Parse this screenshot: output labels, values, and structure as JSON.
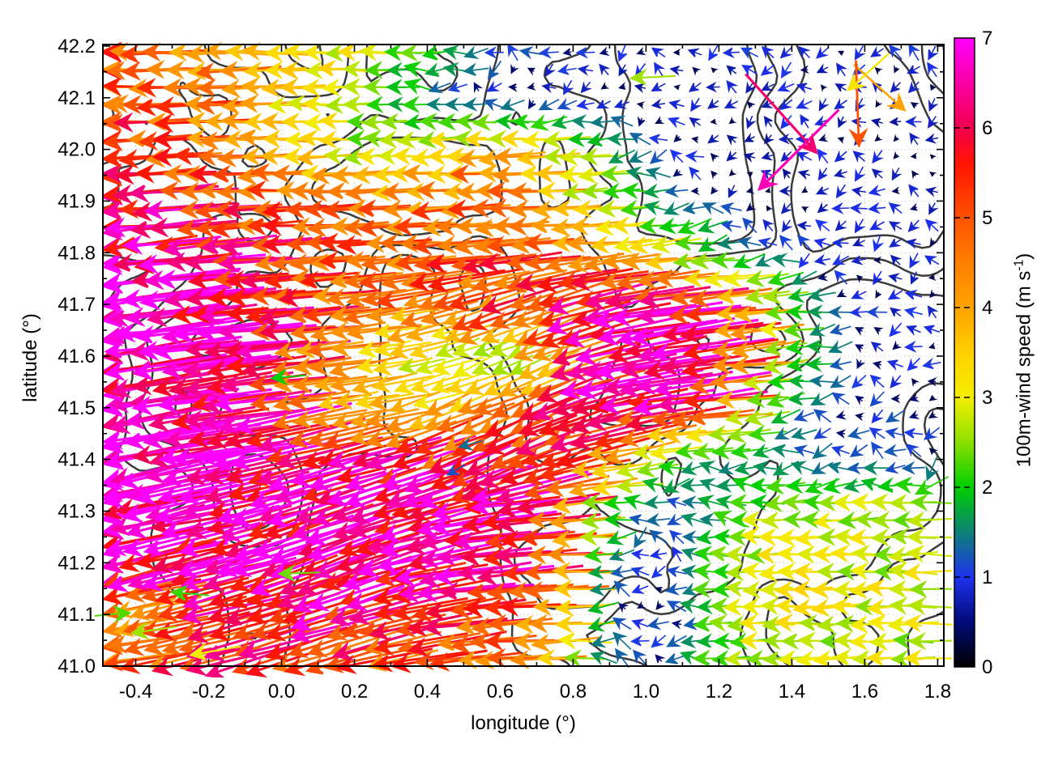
{
  "chart_data": {
    "type": "quiver",
    "title": "",
    "xlabel": "longitude (°)",
    "ylabel": "latitude (°)",
    "xlim": [
      -0.49,
      1.817
    ],
    "ylim": [
      41.0,
      42.203
    ],
    "xticks": {
      "values": [
        -0.4,
        -0.2,
        0.0,
        0.2,
        0.4,
        0.6,
        0.8,
        1.0,
        1.2,
        1.4,
        1.6,
        1.8
      ],
      "labels": [
        "-0.4",
        "-0.2",
        "0.0",
        "0.2",
        "0.4",
        "0.6",
        "0.8",
        "1.0",
        "1.2",
        "1.4",
        "1.6",
        "1.8"
      ],
      "minor_step": 0.1
    },
    "yticks": {
      "values": [
        41.0,
        41.1,
        41.2,
        41.3,
        41.4,
        41.5,
        41.6,
        41.7,
        41.8,
        41.9,
        42.0,
        42.1,
        42.2
      ],
      "labels": [
        "41.0",
        "41.1",
        "41.2",
        "41.3",
        "41.4",
        "41.5",
        "41.6",
        "41.7",
        "41.8",
        "41.9",
        "42.0",
        "42.1",
        "42.2"
      ],
      "minor_step": 0.05
    },
    "grid": {
      "show": true,
      "style": "dotted",
      "color": "#bdbdbd"
    },
    "background": "#ffffff",
    "border_color": "#000000",
    "colorbar": {
      "label_main": "100m-wind speed (m s",
      "label_sup": "-1",
      "label_close": ")",
      "range": [
        0,
        7
      ],
      "ticks": [
        0,
        1,
        2,
        3,
        4,
        5,
        6,
        7
      ],
      "tick_labels": [
        "0",
        "1",
        "2",
        "3",
        "4",
        "5",
        "6",
        "7"
      ],
      "palette": [
        [
          0,
          "#000000"
        ],
        [
          0.5,
          "#000a78"
        ],
        [
          1,
          "#1f32f0"
        ],
        [
          1.5,
          "#0c8177"
        ],
        [
          2,
          "#00cf00"
        ],
        [
          2.5,
          "#8ce000"
        ],
        [
          3,
          "#f4ee00"
        ],
        [
          3.5,
          "#ffd000"
        ],
        [
          4,
          "#ffa200"
        ],
        [
          4.5,
          "#ff8000"
        ],
        [
          5,
          "#ff5200"
        ],
        [
          5.6,
          "#ff1400"
        ],
        [
          6,
          "#f2004e"
        ],
        [
          6.5,
          "#fa00a4"
        ],
        [
          7,
          "#ff00ff"
        ]
      ]
    },
    "wind_field": {
      "lon0": -0.5,
      "dlon": 0.1,
      "lat0": 42.2,
      "dlat": -0.1,
      "fine_lon0": -0.465,
      "fine_dlon": 0.05,
      "fine_cols": 46,
      "fine_lat0": 41.015,
      "fine_dlat": 0.0335,
      "fine_rows": 36,
      "speed": [
        [
          4.8,
          4.8,
          4.7,
          4.5,
          4.2,
          3.6,
          3.3,
          3.0,
          2.6,
          2.0,
          1.6,
          1.3,
          1.1,
          1.0,
          1.0,
          0.9,
          0.8,
          0.9,
          1.0,
          0.9,
          0.8,
          0.9,
          1.0,
          0.9
        ],
        [
          5.2,
          5.1,
          5.0,
          4.7,
          4.0,
          3.4,
          3.2,
          2.8,
          2.2,
          1.6,
          1.2,
          1.0,
          0.9,
          0.8,
          0.8,
          0.7,
          0.8,
          0.7,
          0.8,
          0.9,
          0.8,
          0.7,
          0.8,
          0.8
        ],
        [
          5.6,
          5.5,
          5.3,
          4.8,
          4.4,
          3.8,
          3.4,
          2.8,
          2.4,
          2.6,
          3.4,
          3.8,
          3.4,
          3.0,
          2.0,
          1.2,
          0.9,
          0.8,
          0.7,
          0.8,
          0.9,
          0.8,
          0.7,
          0.7
        ],
        [
          6.4,
          6.2,
          6.0,
          5.7,
          5.3,
          5.0,
          4.7,
          4.5,
          4.3,
          4.4,
          4.7,
          4.9,
          4.5,
          3.6,
          2.8,
          2.0,
          1.3,
          1.0,
          0.8,
          0.7,
          0.8,
          0.9,
          0.8,
          0.8
        ],
        [
          7.0,
          6.9,
          6.7,
          6.3,
          5.8,
          5.4,
          5.2,
          5.0,
          4.9,
          5.0,
          5.1,
          5.2,
          5.0,
          4.6,
          4.2,
          3.6,
          2.6,
          2.0,
          1.4,
          1.1,
          0.9,
          0.8,
          0.9,
          0.9
        ],
        [
          7.0,
          7.0,
          7.0,
          6.9,
          6.6,
          6.0,
          5.4,
          4.8,
          4.6,
          4.5,
          4.6,
          4.8,
          5.2,
          5.6,
          6.2,
          6.5,
          6.4,
          5.8,
          4.2,
          2.2,
          1.4,
          1.0,
          0.9,
          0.9
        ],
        [
          7.0,
          7.0,
          7.0,
          6.9,
          6.7,
          6.2,
          5.0,
          4.0,
          3.2,
          3.0,
          2.8,
          2.6,
          2.8,
          4.0,
          6.0,
          6.8,
          6.8,
          6.4,
          4.6,
          2.4,
          1.6,
          1.1,
          0.9,
          0.9
        ],
        [
          7.0,
          7.0,
          7.0,
          6.9,
          6.6,
          6.2,
          5.2,
          4.2,
          3.6,
          3.4,
          3.8,
          4.4,
          5.2,
          6.0,
          6.4,
          6.4,
          6.2,
          5.6,
          3.0,
          1.6,
          1.2,
          1.1,
          1.1,
          1.0
        ],
        [
          7.0,
          7.0,
          6.9,
          6.9,
          6.8,
          6.6,
          6.5,
          6.4,
          6.2,
          6.0,
          5.9,
          5.8,
          5.6,
          5.2,
          4.6,
          3.2,
          1.8,
          1.5,
          1.6,
          1.4,
          1.2,
          1.1,
          1.1,
          1.0
        ],
        [
          6.9,
          6.8,
          6.7,
          6.6,
          6.6,
          6.6,
          6.5,
          6.5,
          6.6,
          6.6,
          6.5,
          6.4,
          6.2,
          5.2,
          2.2,
          1.3,
          1.2,
          1.6,
          2.4,
          2.7,
          2.7,
          2.8,
          2.8,
          2.7
        ],
        [
          6.3,
          6.2,
          6.2,
          6.4,
          6.5,
          6.5,
          6.4,
          6.3,
          6.4,
          6.5,
          6.4,
          6.2,
          5.8,
          5.0,
          1.5,
          1.0,
          1.1,
          2.2,
          2.8,
          2.9,
          3.0,
          2.9,
          2.8,
          2.8
        ],
        [
          4.9,
          4.6,
          4.6,
          5.2,
          5.6,
          5.9,
          6.0,
          5.9,
          5.8,
          5.6,
          5.5,
          5.4,
          5.0,
          4.4,
          1.3,
          1.0,
          1.1,
          2.2,
          2.7,
          2.8,
          2.9,
          2.8,
          2.8,
          2.7
        ],
        [
          4.3,
          4.5,
          4.8,
          5.1,
          5.3,
          5.6,
          5.5,
          5.2,
          5.0,
          4.8,
          4.6,
          4.4,
          4.2,
          3.0,
          1.3,
          1.1,
          1.2,
          2.4,
          2.8,
          3.0,
          2.9,
          2.8,
          2.9,
          2.8
        ]
      ],
      "dir_deg": [
        [
          180,
          180,
          180,
          180,
          180,
          180,
          180,
          180,
          180,
          180,
          182,
          183,
          184,
          184,
          185,
          185,
          185,
          184,
          184,
          183,
          183,
          184,
          184,
          185
        ],
        [
          181,
          181,
          181,
          180,
          180,
          180,
          180,
          180,
          180,
          181,
          182,
          183,
          184,
          185,
          185,
          186,
          185,
          184,
          184,
          185,
          185,
          184,
          184,
          184
        ],
        [
          182,
          182,
          182,
          181,
          181,
          180,
          180,
          180,
          180,
          181,
          182,
          182,
          183,
          184,
          185,
          186,
          186,
          185,
          184,
          184,
          185,
          185,
          184,
          184
        ],
        [
          184,
          184,
          183,
          183,
          182,
          182,
          182,
          181,
          181,
          182,
          182,
          183,
          183,
          184,
          185,
          186,
          186,
          186,
          185,
          185,
          184,
          184,
          185,
          185
        ],
        [
          186,
          186,
          185,
          185,
          184,
          184,
          183,
          183,
          183,
          184,
          184,
          185,
          185,
          185,
          186,
          186,
          186,
          186,
          185,
          185,
          184,
          185,
          186,
          186
        ],
        [
          187,
          187,
          186,
          186,
          185,
          185,
          186,
          187,
          189,
          193,
          198,
          200,
          200,
          198,
          194,
          190,
          187,
          186,
          185,
          185,
          186,
          186,
          187,
          187
        ],
        [
          188,
          188,
          187,
          187,
          186,
          186,
          187,
          188,
          190,
          196,
          201,
          203,
          203,
          200,
          195,
          190,
          188,
          186,
          186,
          186,
          187,
          187,
          188,
          188
        ],
        [
          190,
          190,
          189,
          188,
          188,
          188,
          189,
          190,
          192,
          198,
          203,
          204,
          204,
          201,
          196,
          191,
          188,
          187,
          186,
          187,
          188,
          188,
          189,
          189
        ],
        [
          192,
          192,
          191,
          190,
          190,
          193,
          196,
          196,
          194,
          198,
          204,
          205,
          202,
          196,
          192,
          189,
          187,
          186,
          185,
          185,
          186,
          186,
          187,
          187
        ],
        [
          193,
          193,
          192,
          192,
          193,
          196,
          198,
          198,
          197,
          196,
          192,
          188,
          185,
          183,
          182,
          181,
          181,
          181,
          181,
          181,
          181,
          181,
          181,
          181
        ],
        [
          194,
          194,
          193,
          194,
          196,
          199,
          200,
          200,
          198,
          194,
          188,
          185,
          184,
          182,
          181,
          181,
          180,
          180,
          180,
          181,
          181,
          181,
          180,
          180
        ],
        [
          193,
          192,
          192,
          194,
          196,
          198,
          198,
          197,
          196,
          192,
          188,
          185,
          183,
          182,
          181,
          181,
          180,
          180,
          181,
          181,
          181,
          180,
          180,
          180
        ],
        [
          190,
          190,
          191,
          193,
          195,
          196,
          196,
          195,
          194,
          190,
          186,
          184,
          183,
          182,
          181,
          181,
          180,
          180,
          181,
          181,
          180,
          180,
          181,
          181
        ]
      ]
    },
    "anomalies": [
      {
        "lon": 1.42,
        "lat": 42.0,
        "speed": 6.6,
        "dir_deg": 225
      },
      {
        "lon": 1.37,
        "lat": 42.07,
        "speed": 6.2,
        "dir_deg": 312
      },
      {
        "lon": 1.64,
        "lat": 42.12,
        "speed": 4.0,
        "dir_deg": 318
      },
      {
        "lon": 1.58,
        "lat": 42.09,
        "speed": 5.0,
        "dir_deg": 272
      },
      {
        "lon": 1.61,
        "lat": 42.15,
        "speed": 3.2,
        "dir_deg": 222
      },
      {
        "lon": 1.02,
        "lat": 42.14,
        "speed": 2.6,
        "dir_deg": 183
      },
      {
        "lon": -0.47,
        "lat": 41.1,
        "speed": 2.3,
        "dir_deg": 5
      },
      {
        "lon": -0.35,
        "lat": 41.07,
        "speed": 2.6,
        "dir_deg": 188
      },
      {
        "lon": -0.25,
        "lat": 41.14,
        "speed": 2.2,
        "dir_deg": 175
      },
      {
        "lon": -0.18,
        "lat": 41.03,
        "speed": 3.0,
        "dir_deg": 190
      },
      {
        "lon": 0.05,
        "lat": 41.18,
        "speed": 2.4,
        "dir_deg": 182
      },
      {
        "lon": 0.02,
        "lat": 41.56,
        "speed": 2.0,
        "dir_deg": 185
      },
      {
        "lon": 0.48,
        "lat": 41.38,
        "speed": 1.2,
        "dir_deg": 210
      },
      {
        "lon": 0.52,
        "lat": 41.43,
        "speed": 1.4,
        "dir_deg": 195
      }
    ],
    "contours": {
      "color": "#3b3b3b",
      "width": 2.5,
      "levels_quantiles": [
        0.38,
        0.52,
        0.66
      ],
      "seed": 23,
      "note": "terrain contour squiggles (procedural approximation)"
    }
  }
}
